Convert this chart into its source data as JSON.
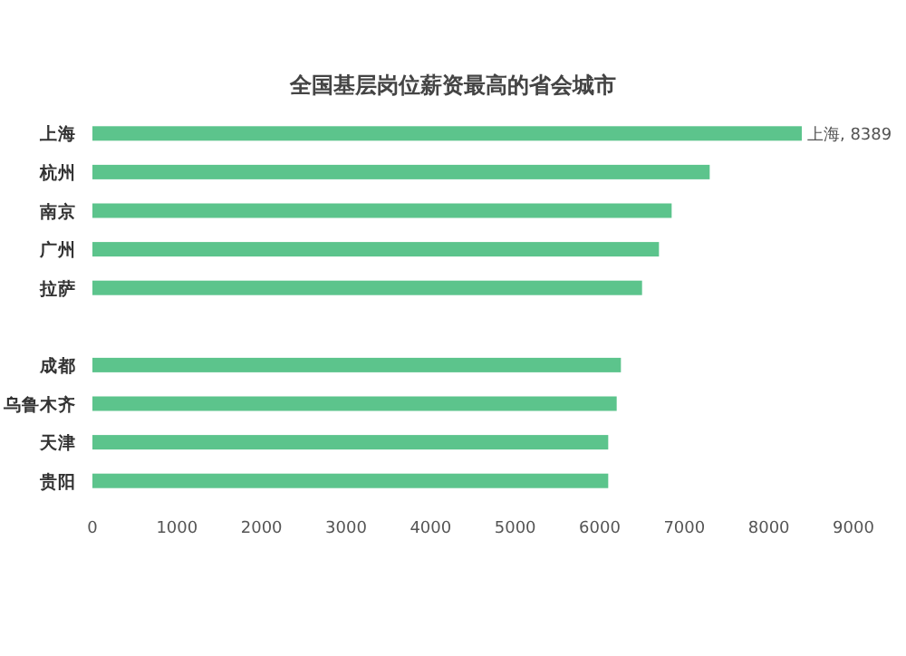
{
  "chart_data": {
    "type": "bar",
    "orientation": "horizontal",
    "title": "全国基层岗位薪资最高的省会城市",
    "categories": [
      "上海",
      "杭州",
      "南京",
      "广州",
      "拉萨",
      null,
      "成都",
      "乌鲁木齐",
      "天津",
      "贵阳"
    ],
    "values": [
      8389,
      7300,
      6850,
      6700,
      6500,
      null,
      6250,
      6200,
      6100,
      6100
    ],
    "value_labels": [
      "上海, 8389",
      null,
      null,
      null,
      null,
      null,
      null,
      null,
      null,
      null
    ],
    "color": "#5cc48c",
    "xlim": [
      0,
      9000
    ],
    "xticks": [
      0,
      1000,
      2000,
      3000,
      4000,
      5000,
      6000,
      7000,
      8000,
      9000
    ],
    "grid": false,
    "legend": false
  }
}
